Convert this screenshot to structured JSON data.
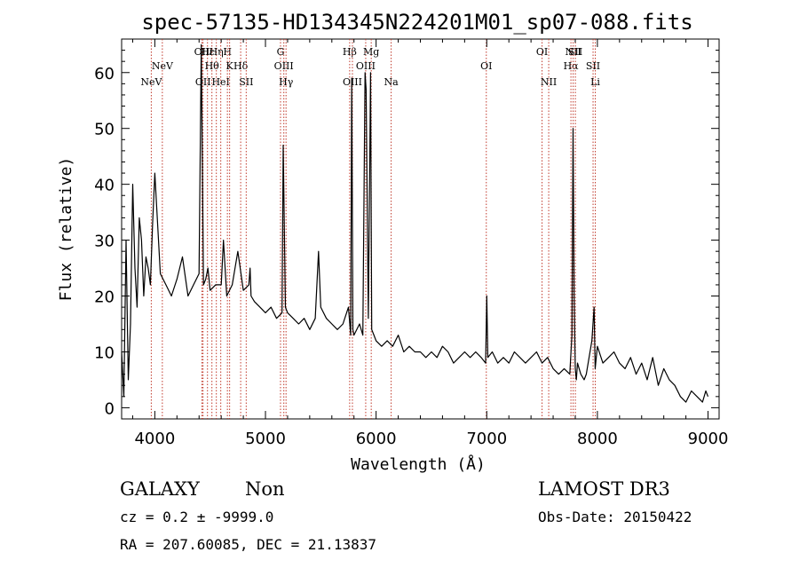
{
  "chart_data": {
    "type": "line",
    "title": "spec-57135-HD134345N224201M01_sp07-088.fits",
    "xlabel": "Wavelength (Å)",
    "ylabel": "Flux (relative)",
    "xlim": [
      3700,
      9100
    ],
    "ylim": [
      -2,
      66
    ],
    "x_ticks": [
      4000,
      5000,
      6000,
      7000,
      8000,
      9000
    ],
    "y_ticks": [
      0,
      10,
      20,
      30,
      40,
      50,
      60
    ],
    "grid": false,
    "series": [
      {
        "name": "spectrum",
        "x": [
          3700,
          3720,
          3740,
          3760,
          3780,
          3800,
          3820,
          3840,
          3860,
          3880,
          3900,
          3920,
          3940,
          3960,
          3980,
          4000,
          4050,
          4100,
          4150,
          4200,
          4250,
          4300,
          4350,
          4400,
          4420,
          4440,
          4460,
          4480,
          4500,
          4550,
          4600,
          4620,
          4650,
          4700,
          4750,
          4800,
          4850,
          4861,
          4870,
          4900,
          4950,
          5000,
          5050,
          5100,
          5150,
          5160,
          5180,
          5200,
          5250,
          5300,
          5350,
          5400,
          5450,
          5480,
          5500,
          5550,
          5600,
          5650,
          5700,
          5750,
          5770,
          5780,
          5790,
          5800,
          5850,
          5880,
          5900,
          5910,
          5930,
          5950,
          5960,
          5980,
          6000,
          6050,
          6100,
          6150,
          6200,
          6250,
          6300,
          6350,
          6400,
          6450,
          6500,
          6550,
          6600,
          6650,
          6700,
          6750,
          6800,
          6850,
          6900,
          6950,
          6990,
          7000,
          7010,
          7050,
          7100,
          7150,
          7200,
          7250,
          7300,
          7350,
          7400,
          7450,
          7500,
          7550,
          7600,
          7650,
          7700,
          7750,
          7770,
          7780,
          7790,
          7800,
          7810,
          7820,
          7850,
          7880,
          7900,
          7950,
          7970,
          7980,
          8000,
          8050,
          8100,
          8150,
          8200,
          8250,
          8300,
          8350,
          8400,
          8450,
          8500,
          8550,
          8600,
          8650,
          8700,
          8750,
          8800,
          8850,
          8900,
          8950,
          8980,
          9000
        ],
        "y": [
          10,
          2,
          30,
          5,
          15,
          40,
          25,
          18,
          34,
          30,
          20,
          27,
          25,
          22,
          33,
          42,
          24,
          22,
          20,
          23,
          27,
          20,
          22,
          24,
          65,
          22,
          23,
          25,
          21,
          22,
          22,
          30,
          20,
          22,
          28,
          21,
          22,
          25,
          20,
          19,
          18,
          17,
          18,
          16,
          17,
          47,
          18,
          17,
          16,
          15,
          16,
          14,
          16,
          28,
          18,
          16,
          15,
          14,
          15,
          18,
          13,
          59,
          14,
          13,
          15,
          13,
          60,
          57,
          16,
          60,
          14,
          13,
          12,
          11,
          12,
          11,
          13,
          10,
          11,
          10,
          10,
          9,
          10,
          9,
          11,
          10,
          8,
          9,
          10,
          9,
          10,
          9,
          8,
          20,
          9,
          10,
          8,
          9,
          8,
          10,
          9,
          8,
          9,
          10,
          8,
          9,
          7,
          6,
          7,
          6,
          13,
          50,
          20,
          7,
          5,
          8,
          6,
          5,
          6,
          12,
          18,
          7,
          11,
          8,
          9,
          10,
          8,
          7,
          9,
          6,
          8,
          5,
          9,
          4,
          7,
          5,
          4,
          2,
          1,
          3,
          2,
          1,
          3,
          2
        ]
      }
    ],
    "annotation_lines": [
      {
        "x": 3968,
        "top": "NeV",
        "row": "3"
      },
      {
        "x": 4068,
        "top": "NeV",
        "row": "2"
      },
      {
        "x": 4426,
        "top": "OII",
        "row": "1"
      },
      {
        "x": 4436,
        "top": "OII",
        "row": "3"
      },
      {
        "x": 4476,
        "top": "Hε",
        "row": "1"
      },
      {
        "x": 4516,
        "top": "Hθ",
        "row": "2"
      },
      {
        "x": 4556,
        "top": "Hη",
        "row": "1"
      },
      {
        "x": 4596,
        "top": "HeI",
        "row": "3"
      },
      {
        "x": 4656,
        "top": "H",
        "row": "1"
      },
      {
        "x": 4676,
        "top": "K",
        "row": "2"
      },
      {
        "x": 4776,
        "top": "Hδ",
        "row": "2"
      },
      {
        "x": 4826,
        "top": "SII",
        "row": "3"
      },
      {
        "x": 5136,
        "top": "G",
        "row": "1"
      },
      {
        "x": 5166,
        "top": "OIII",
        "row": "2"
      },
      {
        "x": 5186,
        "top": "Hγ",
        "row": "3"
      },
      {
        "x": 5761,
        "top": "Hβ",
        "row": "1"
      },
      {
        "x": 5786,
        "top": "OIII",
        "row": "3"
      },
      {
        "x": 5906,
        "top": "OIII",
        "row": "2"
      },
      {
        "x": 5956,
        "top": "Mg",
        "row": "1"
      },
      {
        "x": 6136,
        "top": "Na",
        "row": "3"
      },
      {
        "x": 6996,
        "top": "OI",
        "row": "2"
      },
      {
        "x": 7500,
        "top": "OI",
        "row": "1"
      },
      {
        "x": 7560,
        "top": "NII",
        "row": "3"
      },
      {
        "x": 7761,
        "top": "Hα",
        "row": "2"
      },
      {
        "x": 7781,
        "top": "NII",
        "row": "1"
      },
      {
        "x": 7801,
        "top": "SII",
        "row": "1"
      },
      {
        "x": 7961,
        "top": "SII",
        "row": "2"
      },
      {
        "x": 7981,
        "top": "Li",
        "row": "3"
      }
    ]
  },
  "footer": {
    "class_label": "GALAXY",
    "subclass_label": "Non",
    "survey_label": "LAMOST DR3",
    "redshift_line": "cz = 0.2 ± -9999.0",
    "obs_date_line": "Obs-Date: 20150422",
    "coords_line": "RA = 207.60085, DEC =  21.13837"
  }
}
